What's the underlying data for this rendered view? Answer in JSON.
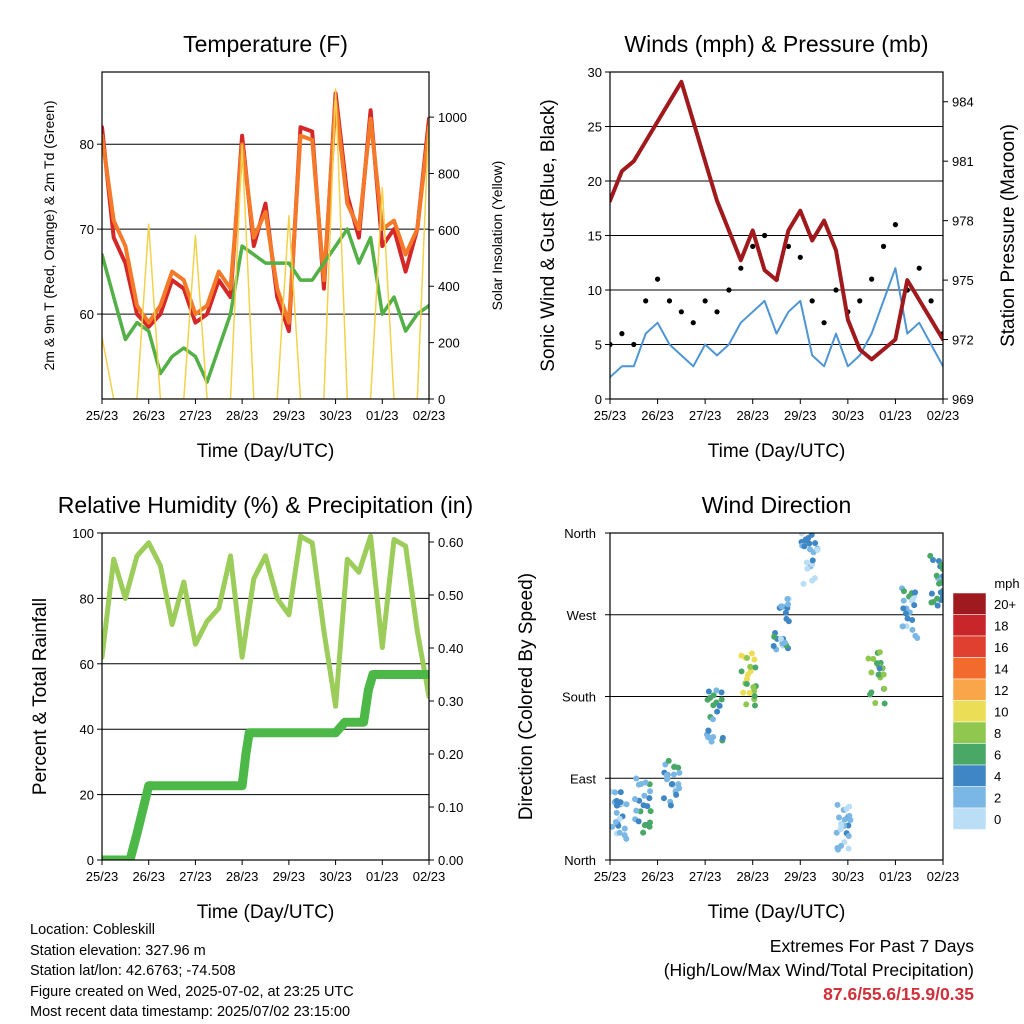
{
  "chart_data": [
    {
      "type": "line",
      "title": "Temperature (F)",
      "xlabel": "Time (Day/UTC)",
      "ylabel_left": "2m & 9m T (Red, Orange) & 2m Td (Green)",
      "ylabel_right": "Solar Insolation (Yellow)",
      "x_ticks": [
        "25/23",
        "26/23",
        "27/23",
        "28/23",
        "29/23",
        "30/23",
        "01/23",
        "02/23"
      ],
      "x": [
        0,
        0.25,
        0.5,
        0.75,
        1,
        1.25,
        1.5,
        1.75,
        2,
        2.25,
        2.5,
        2.75,
        3,
        3.25,
        3.5,
        3.75,
        4,
        4.25,
        4.5,
        4.75,
        5,
        5.25,
        5.5,
        5.75,
        6,
        6.25,
        6.5,
        6.75,
        7
      ],
      "ylim": [
        50,
        88.5
      ],
      "yticks": [
        60,
        70,
        80
      ],
      "y2lim": [
        0,
        1160
      ],
      "y2ticks": [
        0,
        200,
        400,
        600,
        800,
        1000
      ],
      "series": [
        {
          "key": "t2m",
          "color": "#d62728",
          "values": [
            82,
            69,
            66,
            60,
            58.5,
            60,
            64,
            63,
            59,
            60,
            64,
            62,
            81,
            68,
            73,
            62,
            58,
            82,
            81.5,
            63,
            86,
            74,
            69,
            84,
            68,
            70,
            65,
            70,
            83
          ]
        },
        {
          "key": "t9m",
          "color": "#f47a2a",
          "values": [
            81,
            71,
            68,
            61,
            59,
            61,
            65,
            64,
            60,
            61,
            65,
            63,
            80,
            69,
            72,
            63,
            59,
            81,
            80.5,
            64,
            85,
            73,
            70,
            83,
            70,
            71,
            67,
            70,
            82
          ]
        },
        {
          "key": "td2m",
          "color": "#52b046",
          "values": [
            67,
            62,
            57,
            59,
            58,
            53,
            55,
            56,
            55,
            52,
            56,
            60,
            68,
            67,
            66,
            66,
            66,
            64,
            64,
            66,
            68,
            70,
            66,
            69,
            60,
            62,
            58,
            60,
            61
          ]
        },
        {
          "key": "solar",
          "axis": "right",
          "color": "#f2d14b",
          "values": [
            220,
            0,
            0,
            0,
            620,
            0,
            0,
            0,
            580,
            0,
            0,
            0,
            900,
            0,
            0,
            0,
            650,
            0,
            0,
            0,
            1100,
            0,
            0,
            0,
            750,
            0,
            0,
            0,
            1000
          ]
        }
      ]
    },
    {
      "type": "line",
      "title": "Winds (mph) & Pressure (mb)",
      "xlabel": "Time (Day/UTC)",
      "ylabel_left": "Sonic Wind & Gust (Blue, Black)",
      "ylabel_right": "Station Pressure (Maroon)",
      "x_ticks": [
        "25/23",
        "26/23",
        "27/23",
        "28/23",
        "29/23",
        "30/23",
        "01/23",
        "02/23"
      ],
      "x": [
        0,
        0.25,
        0.5,
        0.75,
        1,
        1.25,
        1.5,
        1.75,
        2,
        2.25,
        2.5,
        2.75,
        3,
        3.25,
        3.5,
        3.75,
        4,
        4.25,
        4.5,
        4.75,
        5,
        5.25,
        5.5,
        5.75,
        6,
        6.25,
        6.5,
        6.75,
        7
      ],
      "ylim": [
        0,
        30
      ],
      "yticks": [
        0,
        5,
        10,
        15,
        20,
        25,
        30
      ],
      "y2lim": [
        969,
        985.5
      ],
      "y2ticks": [
        969,
        972,
        975,
        978,
        981,
        984
      ],
      "series": [
        {
          "key": "wind",
          "color": "#4f95d3",
          "values": [
            2,
            3,
            3,
            6,
            7,
            5,
            4,
            3,
            5,
            4,
            5,
            7,
            8,
            9,
            6,
            8,
            9,
            4,
            3,
            6,
            3,
            4,
            6,
            9,
            12,
            6,
            7,
            5,
            3
          ]
        },
        {
          "key": "gust",
          "color": "#000000",
          "values": [
            5,
            6,
            5,
            9,
            11,
            9,
            8,
            7,
            9,
            8,
            10,
            12,
            14,
            15,
            11,
            14,
            13,
            9,
            7,
            10,
            8,
            9,
            11,
            14,
            16,
            10,
            12,
            9,
            6
          ]
        },
        {
          "key": "pressure",
          "axis": "right",
          "color": "#a0191c",
          "values": [
            979,
            980.5,
            981,
            982,
            983,
            984,
            985,
            983,
            981,
            979,
            977.5,
            976,
            977.5,
            975.5,
            975,
            977.5,
            978.5,
            977,
            978,
            976.5,
            973,
            971.5,
            971,
            971.5,
            972,
            975,
            974,
            973,
            972
          ]
        }
      ]
    },
    {
      "type": "line",
      "title": "Relative Humidity (%) & Precipitation (in)",
      "xlabel": "Time (Day/UTC)",
      "ylabel_left": "Percent & Total Rainfall",
      "x_ticks": [
        "25/23",
        "26/23",
        "27/23",
        "28/23",
        "29/23",
        "30/23",
        "01/23",
        "02/23"
      ],
      "x": [
        0,
        0.25,
        0.5,
        0.75,
        1,
        1.25,
        1.5,
        1.75,
        2,
        2.25,
        2.5,
        2.75,
        3,
        3.25,
        3.5,
        3.75,
        4,
        4.25,
        4.5,
        4.75,
        5,
        5.25,
        5.5,
        5.75,
        6,
        6.25,
        6.5,
        6.75,
        7
      ],
      "ylim": [
        0,
        100
      ],
      "yticks": [
        0,
        20,
        40,
        60,
        80,
        100
      ],
      "y2lim": [
        0,
        0.617
      ],
      "y2ticks": [
        0.0,
        0.1,
        0.2,
        0.3,
        0.4,
        0.5,
        0.6
      ],
      "y2ticklabels": [
        "0.00",
        "0.10",
        "0.20",
        "0.30",
        "0.40",
        "0.50",
        "0.60"
      ],
      "series": [
        {
          "key": "rh",
          "color": "#9ccc5a",
          "values": [
            62,
            92,
            80,
            93,
            97,
            90,
            72,
            85,
            66,
            73,
            77,
            93,
            62,
            86,
            93,
            80,
            75,
            99,
            97,
            70,
            47,
            92,
            88,
            99,
            65,
            98,
            96,
            70,
            50
          ]
        },
        {
          "key": "precip",
          "axis": "right",
          "color": "#4cb848",
          "x": [
            0,
            0.6,
            0.75,
            1.0,
            1.3,
            2.5,
            3.0,
            3.08,
            3.15,
            3.3,
            4.0,
            5.0,
            5.2,
            5.6,
            5.7,
            5.8,
            6.5,
            7.0
          ],
          "values": [
            0,
            0,
            0.05,
            0.14,
            0.14,
            0.14,
            0.14,
            0.2,
            0.24,
            0.24,
            0.24,
            0.24,
            0.26,
            0.26,
            0.32,
            0.35,
            0.35,
            0.35
          ]
        }
      ]
    },
    {
      "type": "scatter",
      "title": "Wind Direction",
      "xlabel": "Time (Day/UTC)",
      "ylabel_left": "Direction (Colored By Speed)",
      "x_ticks": [
        "25/23",
        "26/23",
        "27/23",
        "28/23",
        "29/23",
        "30/23",
        "01/23",
        "02/23"
      ],
      "y_categories": [
        "North",
        "East",
        "South",
        "West",
        "North"
      ],
      "colorbar": {
        "title": "mph",
        "labels": [
          "20+",
          "18",
          "16",
          "14",
          "12",
          "10",
          "8",
          "6",
          "4",
          "2",
          "0"
        ],
        "colors": [
          "#9e1a1f",
          "#c8262b",
          "#e0402f",
          "#f26a2c",
          "#f9a64a",
          "#ecdd57",
          "#8fc74f",
          "#4aa867",
          "#3f86c4",
          "#7ab7e4",
          "#b9def5"
        ]
      },
      "clusters": [
        {
          "x": 0.2,
          "dir": 50,
          "speed": 3
        },
        {
          "x": 0.7,
          "dir": 60,
          "speed": 5
        },
        {
          "x": 1.3,
          "dir": 80,
          "speed": 4
        },
        {
          "x": 2.2,
          "dir": 160,
          "speed": 5
        },
        {
          "x": 2.9,
          "dir": 200,
          "speed": 9
        },
        {
          "x": 3.6,
          "dir": 260,
          "speed": 4
        },
        {
          "x": 4.2,
          "dir": 330,
          "speed": 3
        },
        {
          "x": 4.9,
          "dir": 40,
          "speed": 3
        },
        {
          "x": 5.6,
          "dir": 200,
          "speed": 8
        },
        {
          "x": 6.3,
          "dir": 270,
          "speed": 4
        },
        {
          "x": 6.9,
          "dir": 310,
          "speed": 6
        }
      ]
    }
  ],
  "info": {
    "location": "Location: Cobleskill",
    "elevation": "Station elevation: 327.96 m",
    "latlon": "Station lat/lon: 42.6763; -74.508",
    "created": "Figure created on Wed, 2025-07-02, at 23:25 UTC",
    "timestamp": "Most recent data timestamp: 2025/07/02 23:15:00"
  },
  "extremes": {
    "line1": "Extremes For Past 7 Days",
    "line2": "(High/Low/Max Wind/Total Precipitation)",
    "values": "87.6/55.6/15.9/0.35"
  }
}
